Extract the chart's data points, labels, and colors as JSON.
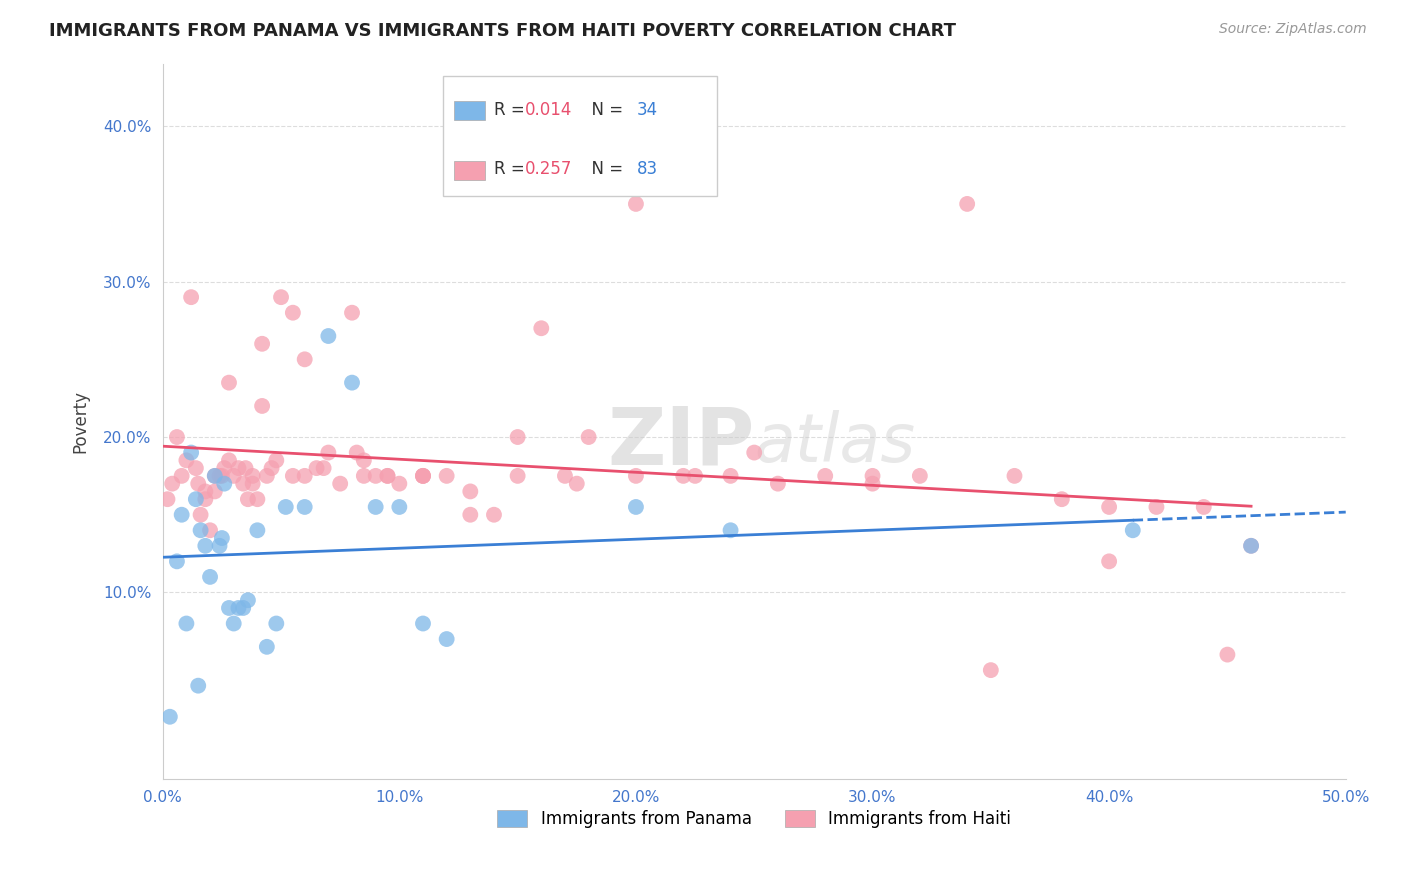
{
  "title": "IMMIGRANTS FROM PANAMA VS IMMIGRANTS FROM HAITI POVERTY CORRELATION CHART",
  "source": "Source: ZipAtlas.com",
  "ylabel": "Poverty",
  "xlim": [
    0.0,
    0.5
  ],
  "ylim": [
    -0.02,
    0.44
  ],
  "xticks": [
    0.0,
    0.1,
    0.2,
    0.3,
    0.4,
    0.5
  ],
  "xtick_labels": [
    "0.0%",
    "10.0%",
    "20.0%",
    "30.0%",
    "40.0%",
    "50.0%"
  ],
  "yticks": [
    0.1,
    0.2,
    0.3,
    0.4
  ],
  "ytick_labels": [
    "10.0%",
    "20.0%",
    "30.0%",
    "40.0%"
  ],
  "panama_color": "#7eb7e8",
  "haiti_color": "#f5a0b0",
  "panama_line_color": "#3a7fd5",
  "haiti_line_color": "#e8506e",
  "watermark": "ZIPAtlas",
  "background_color": "#ffffff",
  "grid_color": "#dddddd",
  "panama_x": [
    0.003,
    0.006,
    0.008,
    0.01,
    0.012,
    0.014,
    0.015,
    0.016,
    0.018,
    0.02,
    0.022,
    0.024,
    0.025,
    0.026,
    0.028,
    0.03,
    0.032,
    0.034,
    0.036,
    0.04,
    0.044,
    0.048,
    0.052,
    0.06,
    0.07,
    0.08,
    0.09,
    0.1,
    0.11,
    0.12,
    0.2,
    0.24,
    0.41,
    0.46
  ],
  "panama_y": [
    0.02,
    0.12,
    0.15,
    0.08,
    0.19,
    0.16,
    0.04,
    0.14,
    0.13,
    0.11,
    0.175,
    0.13,
    0.135,
    0.17,
    0.09,
    0.08,
    0.09,
    0.09,
    0.095,
    0.14,
    0.065,
    0.08,
    0.155,
    0.155,
    0.265,
    0.235,
    0.155,
    0.155,
    0.08,
    0.07,
    0.155,
    0.14,
    0.14,
    0.13
  ],
  "haiti_x": [
    0.002,
    0.004,
    0.006,
    0.008,
    0.01,
    0.012,
    0.014,
    0.016,
    0.018,
    0.02,
    0.022,
    0.024,
    0.026,
    0.028,
    0.03,
    0.032,
    0.034,
    0.036,
    0.038,
    0.04,
    0.042,
    0.044,
    0.046,
    0.048,
    0.05,
    0.055,
    0.06,
    0.065,
    0.07,
    0.075,
    0.08,
    0.085,
    0.09,
    0.095,
    0.1,
    0.11,
    0.12,
    0.13,
    0.14,
    0.15,
    0.16,
    0.17,
    0.18,
    0.2,
    0.22,
    0.24,
    0.26,
    0.28,
    0.3,
    0.32,
    0.34,
    0.36,
    0.38,
    0.4,
    0.42,
    0.44,
    0.46,
    0.015,
    0.018,
    0.022,
    0.028,
    0.035,
    0.042,
    0.055,
    0.068,
    0.082,
    0.095,
    0.11,
    0.13,
    0.15,
    0.175,
    0.2,
    0.225,
    0.25,
    0.3,
    0.35,
    0.4,
    0.45,
    0.025,
    0.038,
    0.06,
    0.085,
    0.11
  ],
  "haiti_y": [
    0.16,
    0.17,
    0.2,
    0.175,
    0.185,
    0.29,
    0.18,
    0.15,
    0.16,
    0.14,
    0.165,
    0.175,
    0.18,
    0.235,
    0.175,
    0.18,
    0.17,
    0.16,
    0.175,
    0.16,
    0.22,
    0.175,
    0.18,
    0.185,
    0.29,
    0.28,
    0.25,
    0.18,
    0.19,
    0.17,
    0.28,
    0.185,
    0.175,
    0.175,
    0.17,
    0.175,
    0.175,
    0.15,
    0.15,
    0.2,
    0.27,
    0.175,
    0.2,
    0.35,
    0.175,
    0.175,
    0.17,
    0.175,
    0.175,
    0.175,
    0.35,
    0.175,
    0.16,
    0.155,
    0.155,
    0.155,
    0.13,
    0.17,
    0.165,
    0.175,
    0.185,
    0.18,
    0.26,
    0.175,
    0.18,
    0.19,
    0.175,
    0.175,
    0.165,
    0.175,
    0.17,
    0.175,
    0.175,
    0.19,
    0.17,
    0.05,
    0.12,
    0.06,
    0.175,
    0.17,
    0.175,
    0.175,
    0.175
  ]
}
